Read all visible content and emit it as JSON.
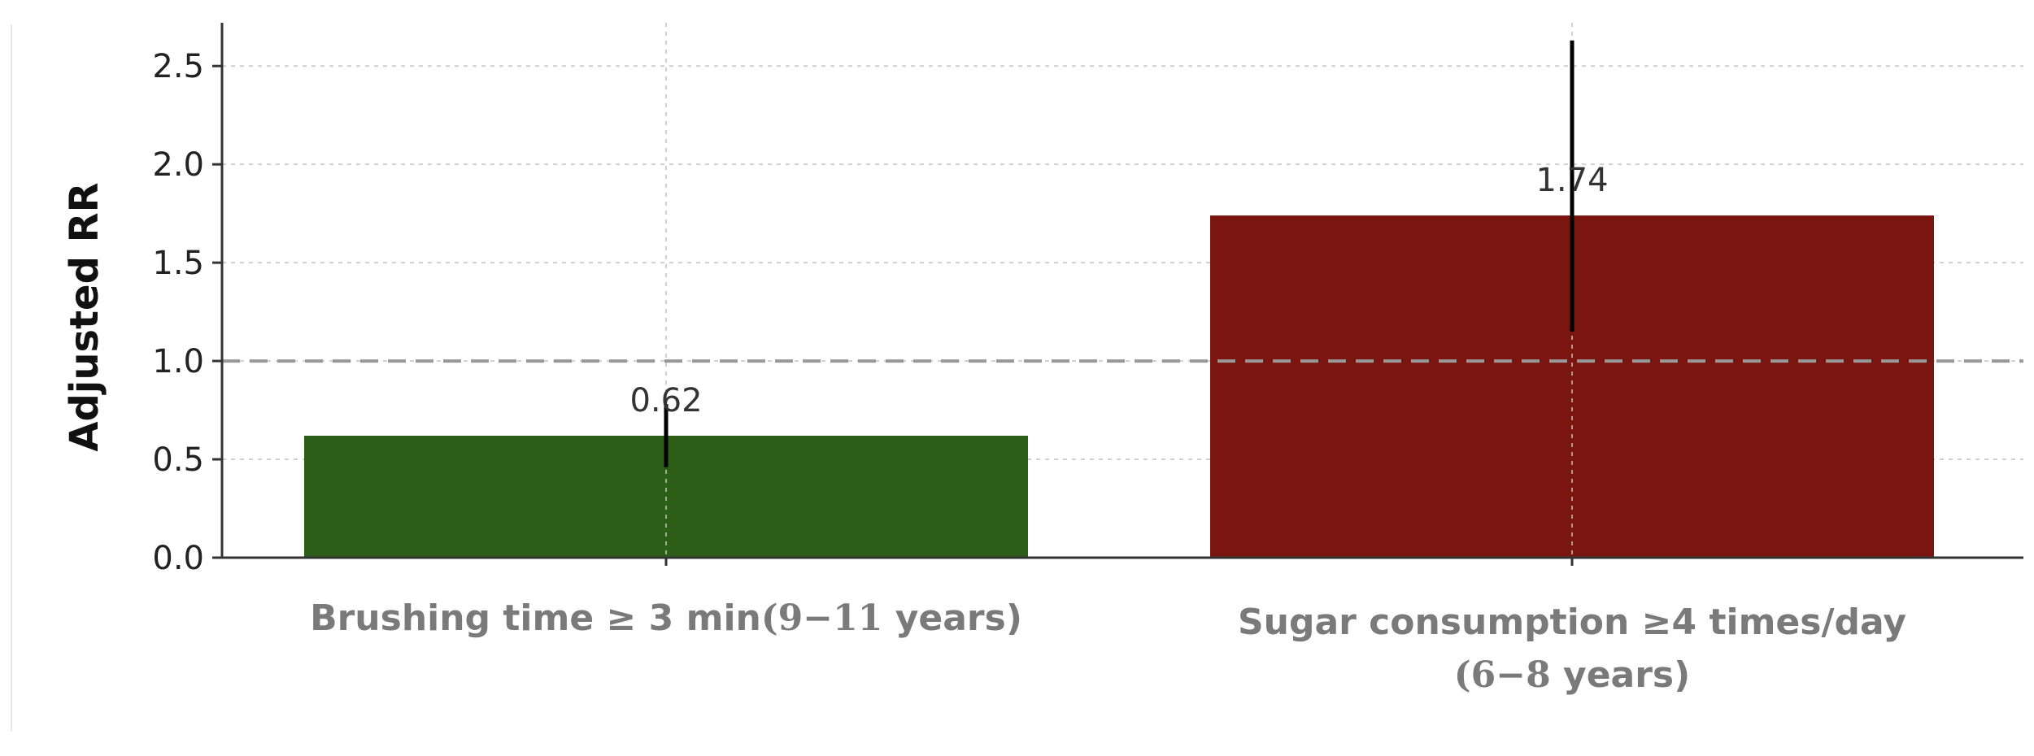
{
  "chart_data": {
    "type": "bar",
    "ylabel": "Adjusted RR",
    "ylim": [
      0,
      2.72
    ],
    "yticks": [
      "0.0",
      "0.5",
      "1.0",
      "1.5",
      "2.0",
      "2.5"
    ],
    "ytick_values": [
      0,
      0.5,
      1.0,
      1.5,
      2.0,
      2.5
    ],
    "grid": true,
    "reference_line": 1.0,
    "categories": [
      "Brushing time ≥ 3 min(9−11 years)",
      "Sugar consumption ≥4 times/day (6−8  years)"
    ],
    "category_label_lines": [
      [
        {
          "text": "Brushing time ≥ 3 min",
          "serif": false
        },
        {
          "text": "(9−11",
          "serif": true
        },
        {
          "text": " years)",
          "serif": false
        }
      ],
      [
        {
          "text": "Sugar consumption ≥4 times/day",
          "serif": false
        }
      ],
      [
        {
          "text": "(6−8",
          "serif": true
        },
        {
          "text": "  years)",
          "serif": false
        }
      ]
    ],
    "values": [
      0.62,
      1.74
    ],
    "data_labels": [
      "0.62",
      "1.74"
    ],
    "error_low": [
      0.46,
      1.15
    ],
    "error_high": [
      0.78,
      2.63
    ],
    "colors": [
      "#2d5e18",
      "#7a1510"
    ]
  }
}
